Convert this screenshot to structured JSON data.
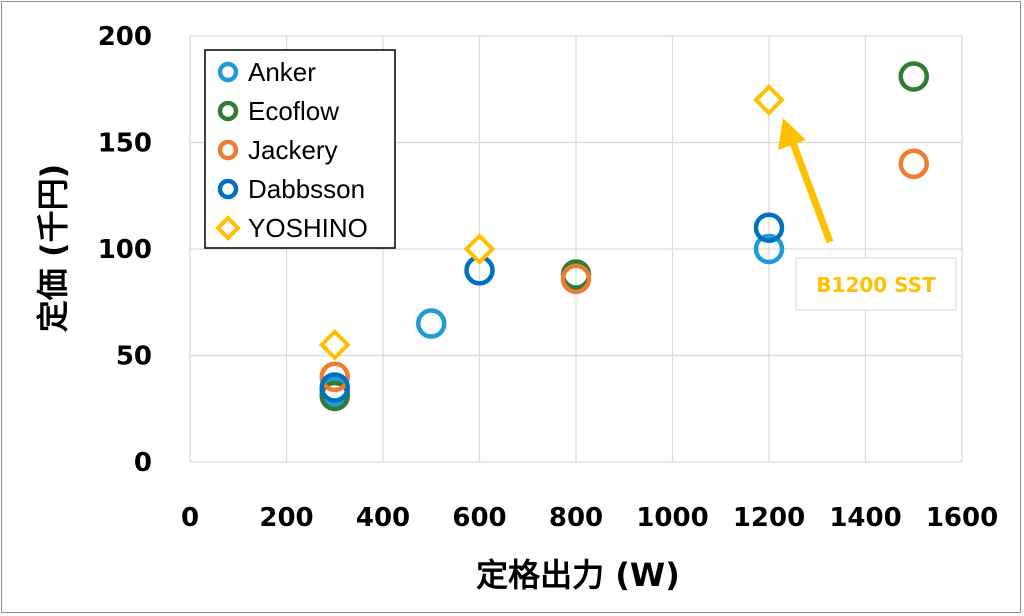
{
  "chart_data": {
    "type": "scatter",
    "xlabel": "定格出力 (W)",
    "ylabel": "定価 (千円)",
    "xlim": [
      0,
      1600
    ],
    "ylim": [
      0,
      200
    ],
    "x_ticks": [
      "0",
      "200",
      "400",
      "600",
      "800",
      "1000",
      "1200",
      "1400",
      "1600"
    ],
    "y_ticks": [
      "0",
      "50",
      "100",
      "150",
      "200"
    ],
    "grid": true,
    "legend_position": "top-left",
    "series": [
      {
        "name": "Anker",
        "color": "#1f9bd7",
        "marker": "circle",
        "points": [
          [
            300,
            33
          ],
          [
            500,
            65
          ],
          [
            1200,
            100
          ]
        ]
      },
      {
        "name": "Ecoflow",
        "color": "#2e7d32",
        "marker": "circle",
        "points": [
          [
            300,
            31
          ],
          [
            800,
            88
          ],
          [
            1500,
            181
          ]
        ]
      },
      {
        "name": "Jackery",
        "color": "#ed7d31",
        "marker": "circle",
        "points": [
          [
            300,
            40
          ],
          [
            800,
            86
          ],
          [
            1500,
            140
          ]
        ]
      },
      {
        "name": "Dabbsson",
        "color": "#0070c0",
        "marker": "circle",
        "points": [
          [
            300,
            35
          ],
          [
            600,
            90
          ],
          [
            1200,
            110
          ]
        ]
      },
      {
        "name": "YOSHINO",
        "color": "#ffc000",
        "marker": "diamond",
        "points": [
          [
            300,
            55
          ],
          [
            600,
            100
          ],
          [
            1200,
            170
          ]
        ]
      }
    ],
    "annotations": [
      {
        "text": "B1200 SST",
        "color": "#ffc000",
        "target": [
          1200,
          170
        ]
      }
    ]
  }
}
